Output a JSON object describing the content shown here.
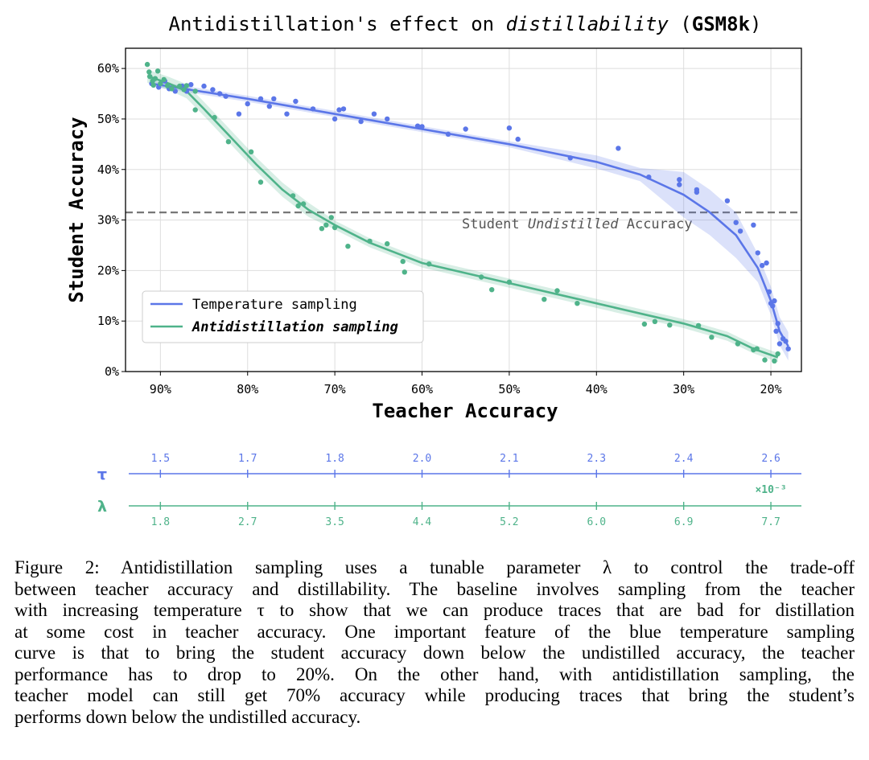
{
  "chart_data": {
    "type": "scatter",
    "title": {
      "prefix": "Antidistillation's effect on ",
      "italic": "distillability",
      "open": " (",
      "bold": "GSM8k",
      "close": ")"
    },
    "xlabel": "Teacher Accuracy",
    "ylabel": "Student Accuracy",
    "x_axis": {
      "reversed": true,
      "xlim": [
        94,
        16.5
      ],
      "ticks": [
        90,
        80,
        70,
        60,
        50,
        40,
        30,
        20
      ],
      "tick_labels": [
        "90%",
        "80%",
        "70%",
        "60%",
        "50%",
        "40%",
        "30%",
        "20%"
      ]
    },
    "y_axis": {
      "ylim": [
        0,
        64
      ],
      "ticks": [
        0,
        10,
        20,
        30,
        40,
        50,
        60
      ],
      "tick_labels": [
        "0%",
        "10%",
        "20%",
        "30%",
        "40%",
        "50%",
        "60%"
      ]
    },
    "grid": true,
    "legend_position": "lower-left",
    "reference_line": {
      "y": 31.5,
      "label_prefix": "Student ",
      "label_italic": "Undistilled",
      "label_suffix": " Accuracy",
      "color": "#777777"
    },
    "series": [
      {
        "name": "Temperature sampling",
        "color": "#5b76e8",
        "points": [
          [
            91.0,
            57.0
          ],
          [
            90.2,
            56.3
          ],
          [
            89.5,
            57.5
          ],
          [
            89.0,
            56.0
          ],
          [
            88.3,
            55.5
          ],
          [
            87.5,
            56.5
          ],
          [
            87.0,
            55.5
          ],
          [
            86.5,
            56.8
          ],
          [
            85.0,
            56.5
          ],
          [
            84.0,
            55.8
          ],
          [
            83.2,
            55.0
          ],
          [
            82.5,
            54.5
          ],
          [
            81.0,
            51.0
          ],
          [
            80.0,
            53.0
          ],
          [
            78.5,
            54.0
          ],
          [
            77.5,
            52.5
          ],
          [
            77.0,
            54.0
          ],
          [
            75.5,
            51.0
          ],
          [
            74.5,
            53.5
          ],
          [
            72.5,
            52.0
          ],
          [
            70.0,
            50.0
          ],
          [
            69.5,
            51.8
          ],
          [
            69.0,
            52.0
          ],
          [
            67.0,
            49.5
          ],
          [
            65.5,
            51.0
          ],
          [
            64.0,
            50.0
          ],
          [
            60.5,
            48.6
          ],
          [
            60.0,
            48.5
          ],
          [
            57.0,
            47.0
          ],
          [
            55.0,
            48.0
          ],
          [
            50.0,
            48.2
          ],
          [
            49.0,
            46.0
          ],
          [
            43.0,
            42.3
          ],
          [
            37.5,
            44.2
          ],
          [
            34.0,
            38.5
          ],
          [
            30.5,
            38.0
          ],
          [
            30.5,
            37.0
          ],
          [
            28.5,
            36.0
          ],
          [
            28.5,
            35.5
          ],
          [
            25.0,
            33.8
          ],
          [
            24.0,
            29.5
          ],
          [
            23.5,
            27.8
          ],
          [
            22.0,
            29.0
          ],
          [
            21.5,
            23.5
          ],
          [
            21.0,
            21.0
          ],
          [
            20.5,
            21.5
          ],
          [
            20.2,
            15.8
          ],
          [
            20.0,
            13.5
          ],
          [
            19.8,
            13.0
          ],
          [
            19.6,
            14.0
          ],
          [
            19.4,
            8.0
          ],
          [
            19.2,
            9.5
          ],
          [
            19.0,
            5.5
          ],
          [
            18.6,
            6.5
          ],
          [
            18.3,
            6.0
          ],
          [
            18.0,
            4.5
          ]
        ],
        "trend": [
          [
            91.0,
            57.0
          ],
          [
            87.0,
            55.9
          ],
          [
            80.0,
            54.0
          ],
          [
            70.0,
            51.0
          ],
          [
            60.0,
            48.0
          ],
          [
            50.0,
            45.0
          ],
          [
            40.0,
            41.5
          ],
          [
            35.0,
            39.0
          ],
          [
            30.0,
            35.0
          ],
          [
            27.0,
            31.5
          ],
          [
            24.0,
            27.0
          ],
          [
            21.5,
            20.5
          ],
          [
            20.0,
            14.0
          ],
          [
            19.0,
            8.0
          ],
          [
            18.0,
            5.0
          ]
        ]
      },
      {
        "name": "Antidistillation sampling",
        "italic_bold": true,
        "color": "#4fb38a",
        "points": [
          [
            91.5,
            60.8
          ],
          [
            91.3,
            59.3
          ],
          [
            91.2,
            58.4
          ],
          [
            90.9,
            57.5
          ],
          [
            90.8,
            56.7
          ],
          [
            90.6,
            58.0
          ],
          [
            90.3,
            59.5
          ],
          [
            90.0,
            57.0
          ],
          [
            89.6,
            57.8
          ],
          [
            89.2,
            56.6
          ],
          [
            88.7,
            56.0
          ],
          [
            87.8,
            56.5
          ],
          [
            87.3,
            55.8
          ],
          [
            87.0,
            56.6
          ],
          [
            86.0,
            55.5
          ],
          [
            86.0,
            51.8
          ],
          [
            83.8,
            50.3
          ],
          [
            82.2,
            45.5
          ],
          [
            79.6,
            43.5
          ],
          [
            78.5,
            37.5
          ],
          [
            74.8,
            34.8
          ],
          [
            74.2,
            32.8
          ],
          [
            73.6,
            33.2
          ],
          [
            71.5,
            28.3
          ],
          [
            71.0,
            29.0
          ],
          [
            70.4,
            30.5
          ],
          [
            70.0,
            28.5
          ],
          [
            68.5,
            24.8
          ],
          [
            66.0,
            25.8
          ],
          [
            64.0,
            25.3
          ],
          [
            62.2,
            21.8
          ],
          [
            62.0,
            19.7
          ],
          [
            59.2,
            21.3
          ],
          [
            53.2,
            18.7
          ],
          [
            52.0,
            16.2
          ],
          [
            50.0,
            17.7
          ],
          [
            46.0,
            14.3
          ],
          [
            44.5,
            16.0
          ],
          [
            42.2,
            13.5
          ],
          [
            34.5,
            9.4
          ],
          [
            33.3,
            9.9
          ],
          [
            31.6,
            9.2
          ],
          [
            28.3,
            9.1
          ],
          [
            26.8,
            6.8
          ],
          [
            23.8,
            5.5
          ],
          [
            22.0,
            4.3
          ],
          [
            21.6,
            4.5
          ],
          [
            20.7,
            2.3
          ],
          [
            19.6,
            2.1
          ],
          [
            19.2,
            3.5
          ]
        ],
        "trend": [
          [
            91.5,
            58.5
          ],
          [
            89.0,
            57.0
          ],
          [
            87.0,
            55.5
          ],
          [
            85.0,
            52.0
          ],
          [
            82.0,
            46.5
          ],
          [
            79.0,
            41.0
          ],
          [
            76.0,
            36.0
          ],
          [
            73.0,
            32.0
          ],
          [
            70.0,
            29.0
          ],
          [
            66.0,
            25.5
          ],
          [
            60.0,
            21.5
          ],
          [
            50.0,
            17.5
          ],
          [
            40.0,
            13.5
          ],
          [
            30.0,
            9.5
          ],
          [
            25.0,
            7.0
          ],
          [
            22.0,
            4.5
          ],
          [
            19.2,
            2.8
          ]
        ]
      }
    ],
    "parameter_axes": [
      {
        "symbol": "τ",
        "color": "#5b76e8",
        "at_teacher_accuracy": [
          90,
          80,
          70,
          60,
          50,
          40,
          30,
          20
        ],
        "tick_labels": [
          "1.5",
          "1.7",
          "1.8",
          "2.0",
          "2.1",
          "2.3",
          "2.4",
          "2.6"
        ]
      },
      {
        "symbol": "λ",
        "color": "#4fb38a",
        "multiplier": "×10⁻³",
        "at_teacher_accuracy": [
          90,
          80,
          70,
          60,
          50,
          40,
          30,
          20
        ],
        "tick_labels": [
          "1.8",
          "2.7",
          "3.5",
          "4.4",
          "5.2",
          "6.0",
          "6.9",
          "7.7"
        ]
      }
    ]
  },
  "caption": {
    "lines": [
      "Figure 2: Antidistillation sampling uses a tunable parameter λ to control the trade-off",
      "between teacher accuracy and distillability. The baseline involves sampling from the teacher",
      "with increasing temperature τ to show that we can produce traces that are bad for distillation",
      "at some cost in teacher accuracy. One important feature of the blue temperature sampling",
      "curve is that to bring the student accuracy down below the undistilled accuracy, the teacher",
      "performance has to drop to 20%.  On the other hand, with antidistillation sampling, the",
      "teacher model can still get 70% accuracy while producing traces that bring the student’s",
      "performs down below the undistilled accuracy."
    ]
  }
}
